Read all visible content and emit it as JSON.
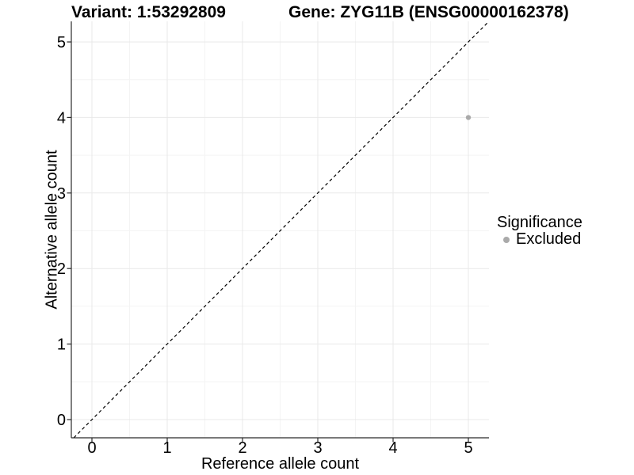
{
  "header": {
    "variant_title": "Variant: 1:53292809",
    "gene_title": "Gene: ZYG11B (ENSG00000162378)"
  },
  "chart_data": {
    "type": "scatter",
    "title_left": "Variant: 1:53292809",
    "title_right": "Gene: ZYG11B (ENSG00000162378)",
    "xlabel": "Reference allele count",
    "ylabel": "Alternative allele count",
    "x_ticks": [
      0,
      1,
      2,
      3,
      4,
      5
    ],
    "y_ticks": [
      0,
      1,
      2,
      3,
      4,
      5
    ],
    "xlim": [
      -0.27,
      5.27
    ],
    "ylim": [
      -0.24,
      5.27
    ],
    "grid": "major+minor",
    "legend_position": "right",
    "points": [
      {
        "x": 5,
        "y": 4,
        "significance": "Excluded"
      }
    ],
    "point_radius_px": 3.2,
    "abline": {
      "slope": 1,
      "intercept": 0,
      "style": "dashed"
    }
  },
  "legend": {
    "title": "Significance",
    "items": [
      {
        "label": "Excluded",
        "color": "#aaaaaa"
      }
    ]
  },
  "colors": {
    "background": "#ffffff",
    "point": "#aaaaaa",
    "grid_major": "#e9e9e9",
    "grid_minor": "#f4f4f4",
    "axis_line": "#2b2b2b",
    "tick_mark": "#2b2b2b",
    "abline": "#000000",
    "text": "#000000"
  }
}
